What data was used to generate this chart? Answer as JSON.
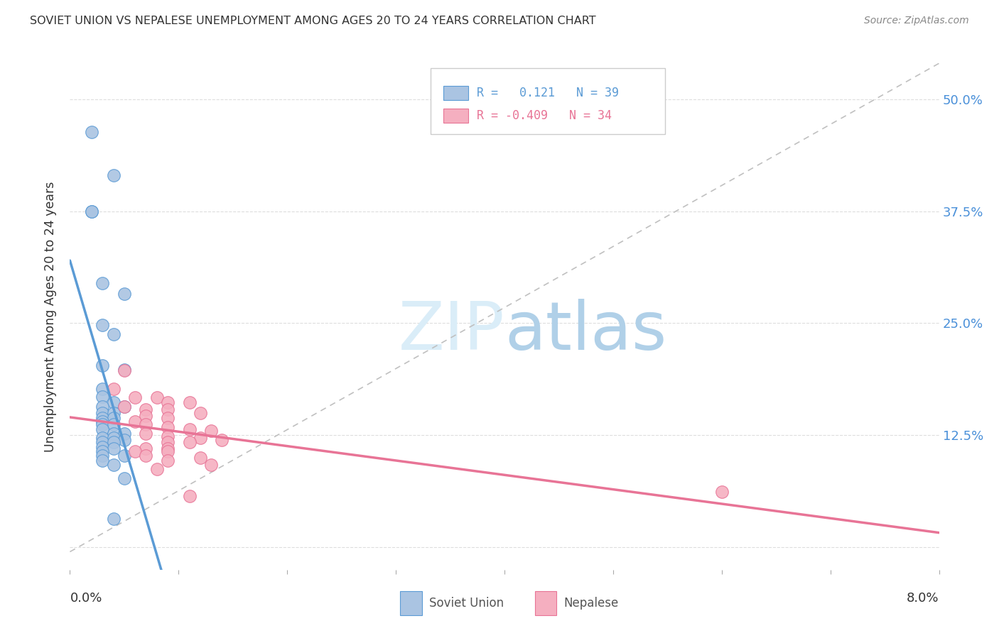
{
  "title": "SOVIET UNION VS NEPALESE UNEMPLOYMENT AMONG AGES 20 TO 24 YEARS CORRELATION CHART",
  "source": "Source: ZipAtlas.com",
  "ylabel": "Unemployment Among Ages 20 to 24 years",
  "ytick_labels": [
    "",
    "12.5%",
    "25.0%",
    "37.5%",
    "50.0%"
  ],
  "ytick_vals": [
    0.0,
    0.125,
    0.25,
    0.375,
    0.5
  ],
  "xmin": 0.0,
  "xmax": 0.08,
  "ymin": -0.025,
  "ymax": 0.54,
  "legend_r1_text": "R =   0.121   N = 39",
  "legend_r2_text": "R = -0.409   N = 34",
  "soviet_color": "#aac4e2",
  "nepalese_color": "#f5afc0",
  "soviet_line_color": "#5b9bd5",
  "nepalese_line_color": "#e87496",
  "ref_line_color": "#c0c0c0",
  "watermark_color": "#daedf8",
  "soviet_scatter": [
    [
      0.002,
      0.463
    ],
    [
      0.004,
      0.415
    ],
    [
      0.002,
      0.375
    ],
    [
      0.002,
      0.375
    ],
    [
      0.003,
      0.295
    ],
    [
      0.005,
      0.283
    ],
    [
      0.003,
      0.248
    ],
    [
      0.004,
      0.238
    ],
    [
      0.003,
      0.203
    ],
    [
      0.005,
      0.198
    ],
    [
      0.003,
      0.177
    ],
    [
      0.003,
      0.168
    ],
    [
      0.004,
      0.162
    ],
    [
      0.003,
      0.157
    ],
    [
      0.005,
      0.157
    ],
    [
      0.003,
      0.15
    ],
    [
      0.004,
      0.15
    ],
    [
      0.003,
      0.144
    ],
    [
      0.004,
      0.144
    ],
    [
      0.003,
      0.14
    ],
    [
      0.003,
      0.137
    ],
    [
      0.004,
      0.137
    ],
    [
      0.003,
      0.132
    ],
    [
      0.004,
      0.127
    ],
    [
      0.005,
      0.127
    ],
    [
      0.003,
      0.122
    ],
    [
      0.004,
      0.122
    ],
    [
      0.005,
      0.12
    ],
    [
      0.003,
      0.117
    ],
    [
      0.004,
      0.117
    ],
    [
      0.003,
      0.112
    ],
    [
      0.004,
      0.11
    ],
    [
      0.003,
      0.107
    ],
    [
      0.003,
      0.102
    ],
    [
      0.005,
      0.102
    ],
    [
      0.003,
      0.097
    ],
    [
      0.004,
      0.092
    ],
    [
      0.005,
      0.077
    ],
    [
      0.004,
      0.032
    ]
  ],
  "nepalese_scatter": [
    [
      0.005,
      0.197
    ],
    [
      0.004,
      0.177
    ],
    [
      0.006,
      0.167
    ],
    [
      0.008,
      0.167
    ],
    [
      0.009,
      0.162
    ],
    [
      0.011,
      0.162
    ],
    [
      0.005,
      0.157
    ],
    [
      0.007,
      0.154
    ],
    [
      0.009,
      0.154
    ],
    [
      0.012,
      0.15
    ],
    [
      0.007,
      0.147
    ],
    [
      0.009,
      0.144
    ],
    [
      0.006,
      0.14
    ],
    [
      0.007,
      0.137
    ],
    [
      0.009,
      0.134
    ],
    [
      0.011,
      0.132
    ],
    [
      0.013,
      0.13
    ],
    [
      0.007,
      0.127
    ],
    [
      0.009,
      0.124
    ],
    [
      0.012,
      0.122
    ],
    [
      0.014,
      0.12
    ],
    [
      0.009,
      0.117
    ],
    [
      0.011,
      0.117
    ],
    [
      0.007,
      0.11
    ],
    [
      0.009,
      0.11
    ],
    [
      0.006,
      0.107
    ],
    [
      0.009,
      0.107
    ],
    [
      0.007,
      0.102
    ],
    [
      0.012,
      0.1
    ],
    [
      0.009,
      0.097
    ],
    [
      0.013,
      0.092
    ],
    [
      0.008,
      0.087
    ],
    [
      0.06,
      0.062
    ],
    [
      0.011,
      0.057
    ]
  ],
  "watermark": "ZIPatlas",
  "background_color": "#ffffff"
}
